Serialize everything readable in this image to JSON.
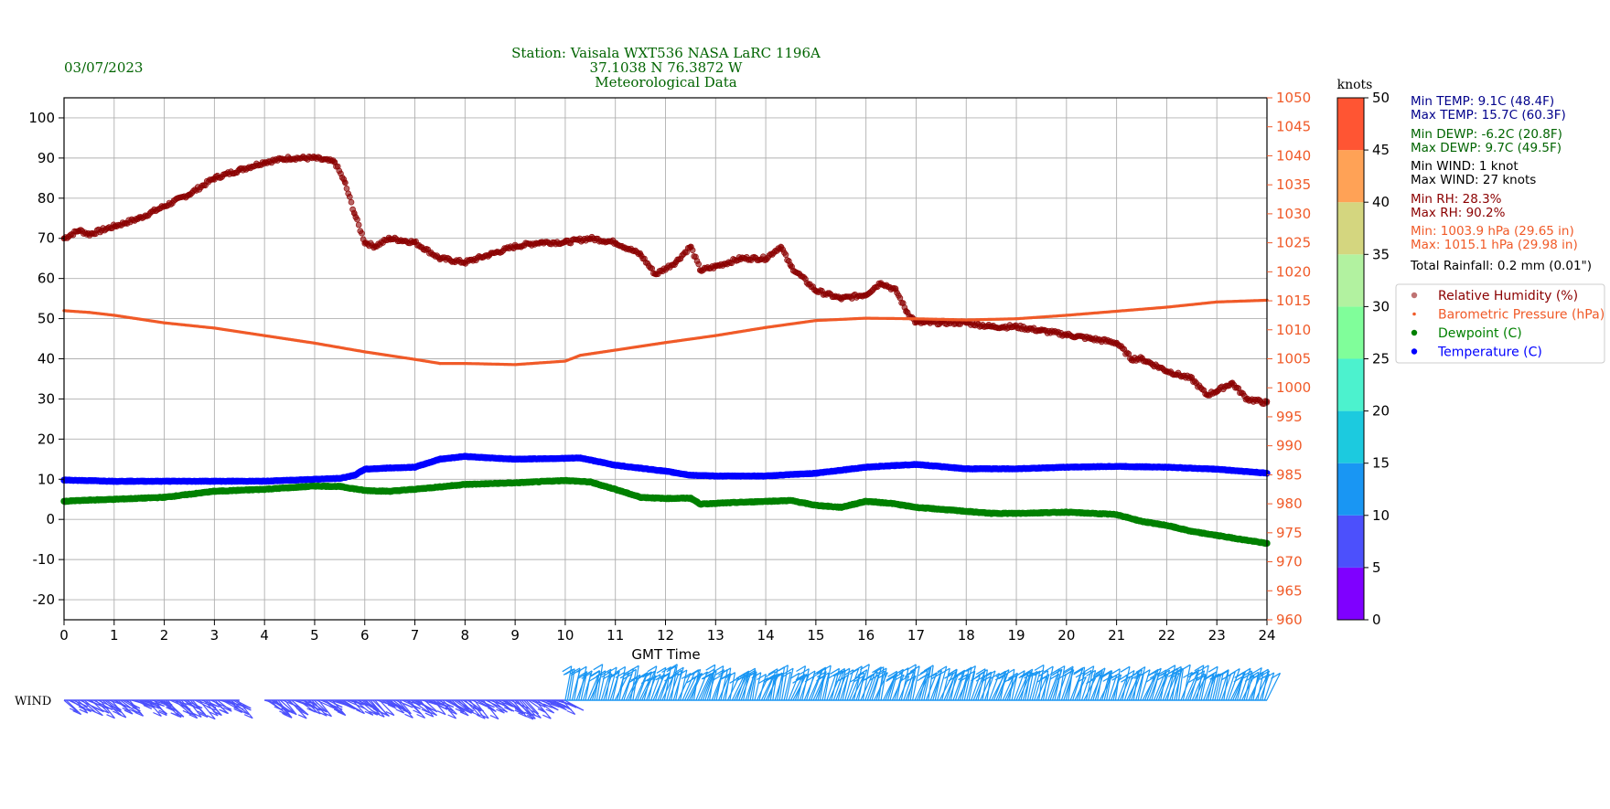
{
  "date": "03/07/2023",
  "title_lines": [
    "Station:  Vaisala WXT536  NASA LaRC 1196A",
    "37.1038 N 76.3872 W",
    "Meteorological Data"
  ],
  "xlabel": "GMT Time",
  "wind_label": "WIND",
  "colorbar": {
    "label": "knots",
    "ticks": [
      0,
      5,
      10,
      15,
      20,
      25,
      30,
      35,
      40,
      45,
      50
    ],
    "colors": [
      "#7f00ff",
      "#4c50fc",
      "#1996f3",
      "#1ccadf",
      "#4cf2ce",
      "#80fe9a",
      "#b2f2a0",
      "#d4d67f",
      "#ffa256",
      "#ff5533",
      "#ff0000"
    ]
  },
  "stats": [
    {
      "text": "Min TEMP: 9.1C (48.4F)",
      "color": "#00008b"
    },
    {
      "text": "Max TEMP: 15.7C (60.3F)",
      "color": "#00008b"
    },
    {
      "text": "Min DEWP: -6.2C (20.8F)",
      "color": "#006400"
    },
    {
      "text": "Max DEWP: 9.7C (49.5F)",
      "color": "#006400"
    },
    {
      "text": "Min WIND: 1 knot",
      "color": "#000000"
    },
    {
      "text": "Max WIND: 27 knots",
      "color": "#000000"
    },
    {
      "text": "Min RH: 28.3%",
      "color": "#8b0000"
    },
    {
      "text": "Max RH: 90.2%",
      "color": "#8b0000"
    },
    {
      "text": "Min: 1003.9 hPa (29.65 in)",
      "color": "#f05a28"
    },
    {
      "text": "Max: 1015.1 hPa (29.98 in)",
      "color": "#f05a28"
    },
    {
      "text": "Total Rainfall: 0.2 mm (0.01\")",
      "color": "#000000"
    }
  ],
  "legend": [
    {
      "label": "Relative Humidity (%)",
      "color": "#8b0000"
    },
    {
      "label": "Barometric Pressure (hPa)",
      "color": "#f05a28"
    },
    {
      "label": "Dewpoint (C)",
      "color": "#008000"
    },
    {
      "label": "Temperature (C)",
      "color": "#0000ff"
    }
  ],
  "chart_data": {
    "type": "scatter",
    "x_range": [
      0,
      24
    ],
    "x_ticks": [
      0,
      1,
      2,
      3,
      4,
      5,
      6,
      7,
      8,
      9,
      10,
      11,
      12,
      13,
      14,
      15,
      16,
      17,
      18,
      19,
      20,
      21,
      22,
      23,
      24
    ],
    "left_axis": {
      "ylim": [
        -25,
        105
      ],
      "ticks": [
        -20,
        -10,
        0,
        10,
        20,
        30,
        40,
        50,
        60,
        70,
        80,
        90,
        100
      ]
    },
    "right_axis": {
      "ylim": [
        960,
        1050
      ],
      "ticks": [
        960,
        965,
        970,
        975,
        980,
        985,
        990,
        995,
        1000,
        1005,
        1010,
        1015,
        1020,
        1025,
        1030,
        1035,
        1040,
        1045,
        1050
      ],
      "color": "#f05a28"
    },
    "grid": true,
    "legend_position": "right",
    "series": [
      {
        "name": "Relative Humidity (%)",
        "axis": "left",
        "color": "#8b0000",
        "x": [
          0,
          0.3,
          0.5,
          1,
          1.5,
          2,
          2.5,
          3,
          3.5,
          4,
          4.5,
          5,
          5.4,
          5.6,
          5.8,
          6,
          6.2,
          6.5,
          7,
          7.5,
          8,
          8.5,
          9,
          9.5,
          10,
          10.5,
          11,
          11.5,
          11.8,
          12.2,
          12.5,
          12.7,
          13,
          13.5,
          14,
          14.3,
          14.5,
          15,
          15.5,
          16,
          16.3,
          16.6,
          16.8,
          17,
          17.5,
          18,
          18.5,
          19,
          19.5,
          20,
          20.5,
          21,
          21.3,
          21.5,
          22,
          22.5,
          22.8,
          23,
          23.3,
          23.6,
          24
        ],
        "y": [
          70,
          72,
          71,
          73,
          75,
          78,
          81,
          85,
          87,
          89,
          90,
          90,
          89,
          84,
          76,
          69,
          68,
          70,
          69,
          65,
          64,
          66,
          68,
          69,
          69,
          70,
          69,
          66,
          61,
          64,
          68,
          62,
          63,
          65,
          65,
          68,
          63,
          57,
          55,
          56,
          59,
          57,
          52,
          49,
          49,
          49,
          48,
          48,
          47,
          46,
          45,
          44,
          40,
          40,
          37,
          35,
          31,
          32,
          34,
          30,
          29
        ]
      },
      {
        "name": "Barometric Pressure (hPa)",
        "axis": "right",
        "color": "#f05a28",
        "x": [
          0,
          0.5,
          1,
          2,
          3,
          4,
          5,
          6,
          7,
          7.5,
          8,
          9,
          10,
          10.3,
          11,
          12,
          13,
          14,
          15,
          16,
          17,
          18,
          19,
          20,
          21,
          22,
          23,
          24
        ],
        "y": [
          1013.3,
          1013.0,
          1012.5,
          1011.2,
          1010.3,
          1009.0,
          1007.7,
          1006.2,
          1004.9,
          1004.2,
          1004.2,
          1004.0,
          1004.6,
          1005.6,
          1006.5,
          1007.8,
          1009.0,
          1010.4,
          1011.6,
          1012.0,
          1011.9,
          1011.7,
          1011.9,
          1012.5,
          1013.2,
          1013.9,
          1014.8,
          1015.1
        ]
      },
      {
        "name": "Dewpoint (C)",
        "axis": "left",
        "color": "#008000",
        "x": [
          0,
          0.5,
          1,
          2,
          3,
          4,
          5,
          5.5,
          6,
          6.5,
          7,
          8,
          9,
          10,
          10.5,
          11,
          11.5,
          12,
          12.5,
          12.7,
          13,
          14,
          14.5,
          15,
          15.5,
          16,
          16.5,
          17,
          18,
          18.5,
          19,
          20,
          21,
          21.5,
          22,
          22.5,
          23,
          23.5,
          24
        ],
        "y": [
          4.5,
          4.8,
          5,
          5.5,
          7,
          7.5,
          8.3,
          8.2,
          7.2,
          7,
          7.5,
          8.7,
          9.1,
          9.7,
          9.3,
          7.5,
          5.5,
          5.2,
          5.3,
          3.8,
          4,
          4.5,
          4.7,
          3.5,
          3.0,
          4.5,
          4.0,
          3.0,
          2.0,
          1.5,
          1.5,
          1.8,
          1.2,
          -0.5,
          -1.5,
          -3,
          -4,
          -5,
          -6
        ]
      },
      {
        "name": "Temperature (C)",
        "axis": "left",
        "color": "#0000ff",
        "x": [
          0,
          1,
          2,
          3,
          4,
          5,
          5.5,
          5.8,
          6,
          6.5,
          7,
          7.5,
          8,
          8.5,
          9,
          10,
          10.3,
          11,
          12,
          12.5,
          13,
          14,
          15,
          16,
          17,
          18,
          19,
          20,
          21,
          22,
          23,
          23.5,
          24
        ],
        "y": [
          9.8,
          9.5,
          9.5,
          9.5,
          9.5,
          10,
          10.2,
          11,
          12.5,
          12.8,
          13,
          15,
          15.7,
          15.3,
          15,
          15.2,
          15.3,
          13.5,
          12,
          11,
          10.8,
          10.8,
          11.5,
          13,
          13.7,
          12.6,
          12.6,
          13,
          13.2,
          13,
          12.5,
          12,
          11.5
        ]
      }
    ],
    "wind_barbs": {
      "segments": [
        {
          "from": 0,
          "to": 3.5,
          "side": "below",
          "color_knots": 7
        },
        {
          "from": 4,
          "to": 10,
          "side": "below",
          "color_knots": 5
        },
        {
          "from": 10,
          "to": 24,
          "side": "above",
          "color_knots": 11
        }
      ]
    }
  }
}
